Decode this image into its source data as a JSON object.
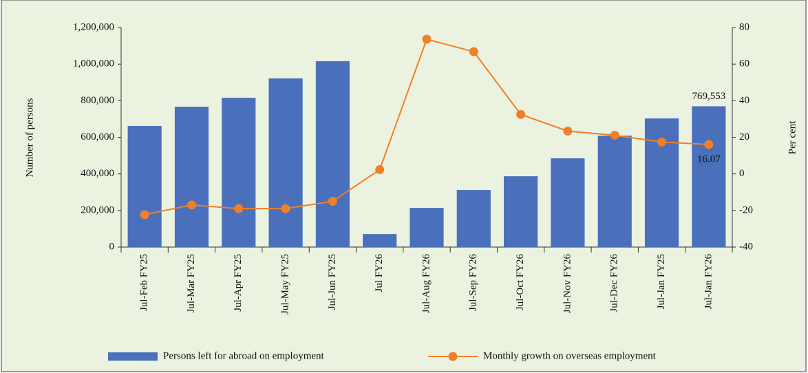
{
  "chart_data": {
    "type": "bar-line",
    "y_label": "Number of persons",
    "y2_label": "Per cent",
    "categories": [
      "Jul-Feb FY25",
      "Jul-Mar FY25",
      "Jul-Apr FY25",
      "Jul-May FY25",
      "Jul-Jun FY25",
      "Jul FY26",
      "Jul-Aug FY26",
      "Jul-Sep FY26",
      "Jul-Oct FY26",
      "Jul-Nov FY26",
      "Jul-Dec FY26",
      "Jul-Jan FY25",
      "Jul-Jan FY26"
    ],
    "series": [
      {
        "name": "Persons left for abroad on employment",
        "type": "bar",
        "color": "#4a70bc",
        "values": [
          662000,
          767000,
          816000,
          922000,
          1016000,
          71000,
          214000,
          312000,
          387000,
          485000,
          609000,
          703000,
          769553
        ],
        "value_labels": [
          null,
          null,
          null,
          null,
          null,
          null,
          null,
          null,
          null,
          null,
          null,
          null,
          "769,553"
        ]
      },
      {
        "name": "Monthly growth on overseas employment",
        "type": "line",
        "axis": "y2",
        "color": "#f07f2a",
        "values": [
          -22.3,
          -17,
          -19,
          -19,
          -15,
          2.3,
          73.6,
          66.8,
          32.5,
          23.4,
          21.1,
          17.4,
          16.07
        ],
        "value_labels": [
          null,
          null,
          null,
          null,
          null,
          null,
          null,
          null,
          null,
          null,
          null,
          null,
          16.07
        ]
      }
    ],
    "ylim": [
      0,
      1200000
    ],
    "yticks": [
      0,
      {
        "value": 200000,
        "label": "200,000"
      },
      {
        "value": 400000,
        "label": "400,000"
      },
      {
        "value": 600000,
        "label": "600,000"
      },
      {
        "value": 800000,
        "label": "800,000"
      },
      {
        "value": 1000000,
        "label": "1,000,000"
      },
      {
        "value": 1200000,
        "label": "1,200,000"
      }
    ],
    "y2lim": [
      -40,
      80
    ],
    "y2ticks": [
      -40,
      -20,
      0,
      20,
      40,
      60,
      80
    ],
    "legend": "bottom"
  }
}
